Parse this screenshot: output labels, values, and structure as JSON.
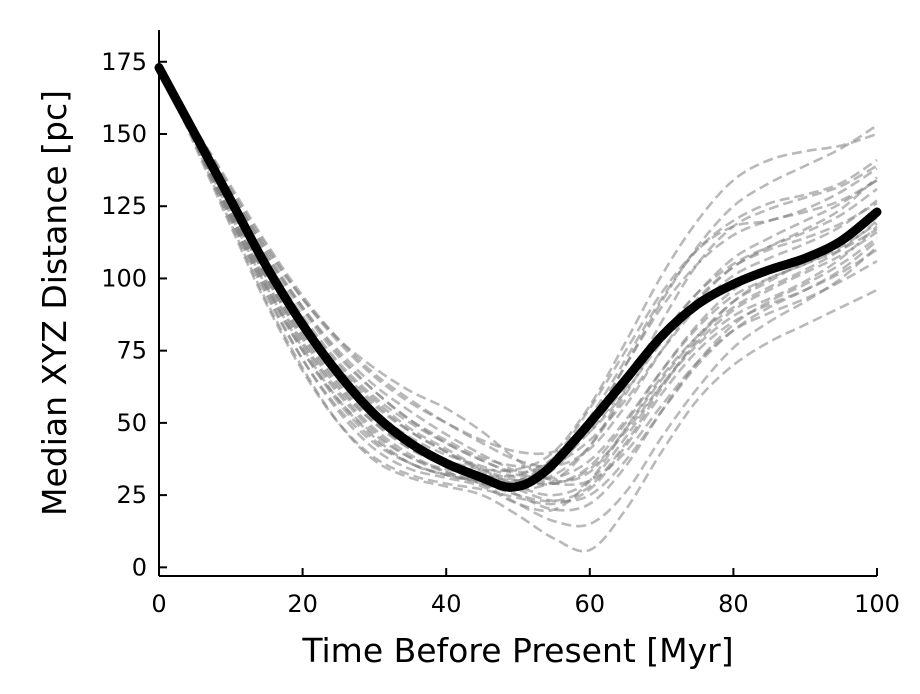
{
  "chart_data": {
    "type": "line",
    "xlabel": "Time Before Present [Myr]",
    "ylabel": "Median XYZ Distance [pc]",
    "xlim": [
      0,
      100
    ],
    "ylim": [
      -3,
      186
    ],
    "xticks": [
      0,
      20,
      40,
      60,
      80,
      100
    ],
    "yticks": [
      0,
      25,
      50,
      75,
      100,
      125,
      150,
      175
    ],
    "grid": false,
    "legend": "none",
    "median": {
      "color": "#000000",
      "x": [
        0,
        5,
        10,
        15,
        20,
        25,
        30,
        35,
        40,
        45,
        48,
        50,
        52,
        55,
        60,
        65,
        70,
        75,
        80,
        85,
        90,
        95,
        100
      ],
      "y": [
        173,
        150,
        127,
        104,
        84,
        67,
        53,
        43,
        36,
        31,
        28,
        28,
        30,
        36,
        50,
        65,
        80,
        91,
        98,
        103,
        107,
        113,
        123
      ]
    },
    "samples": {
      "color": "#7f7f7f",
      "x": [
        0,
        5,
        10,
        15,
        20,
        25,
        30,
        35,
        40,
        45,
        50,
        55,
        60,
        65,
        70,
        75,
        80,
        85,
        90,
        95,
        100
      ],
      "lines": [
        [
          173,
          148,
          122,
          97,
          76,
          58,
          45,
          36,
          32,
          30,
          30,
          38,
          55,
          75,
          95,
          110,
          118,
          120,
          124,
          130,
          138
        ],
        [
          172,
          150,
          128,
          107,
          89,
          73,
          61,
          51,
          43,
          37,
          33,
          36,
          47,
          63,
          80,
          95,
          105,
          111,
          116,
          122,
          131
        ],
        [
          174,
          148,
          121,
          95,
          72,
          54,
          41,
          34,
          31,
          28,
          22,
          20,
          30,
          48,
          66,
          80,
          90,
          97,
          103,
          110,
          120
        ],
        [
          172,
          151,
          130,
          110,
          93,
          79,
          69,
          61,
          55,
          47,
          37,
          30,
          33,
          48,
          65,
          80,
          92,
          99,
          106,
          113,
          121
        ],
        [
          173,
          149,
          124,
          100,
          80,
          63,
          50,
          41,
          36,
          32,
          30,
          32,
          42,
          60,
          80,
          95,
          107,
          114,
          120,
          126,
          134
        ],
        [
          175,
          147,
          119,
          92,
          69,
          50,
          37,
          31,
          28,
          25,
          18,
          10,
          6,
          20,
          40,
          58,
          70,
          78,
          84,
          90,
          96
        ],
        [
          174,
          148,
          121,
          96,
          75,
          58,
          46,
          38,
          34,
          32,
          32,
          38,
          52,
          72,
          93,
          110,
          120,
          126,
          129,
          133,
          141
        ],
        [
          172,
          150,
          127,
          105,
          86,
          70,
          58,
          48,
          41,
          34,
          28,
          25,
          30,
          45,
          63,
          78,
          89,
          96,
          102,
          108,
          116
        ],
        [
          173,
          150,
          127,
          104,
          85,
          69,
          57,
          47,
          40,
          34,
          30,
          29,
          35,
          50,
          68,
          84,
          96,
          103,
          108,
          114,
          124
        ],
        [
          174,
          146,
          118,
          91,
          68,
          50,
          38,
          32,
          29,
          27,
          24,
          22,
          27,
          42,
          60,
          75,
          85,
          91,
          96,
          102,
          110
        ],
        [
          172,
          152,
          132,
          112,
          94,
          79,
          67,
          58,
          50,
          43,
          37,
          35,
          41,
          56,
          75,
          92,
          104,
          111,
          117,
          124,
          135
        ],
        [
          173,
          149,
          125,
          101,
          81,
          64,
          51,
          41,
          35,
          29,
          22,
          16,
          15,
          26,
          45,
          62,
          76,
          85,
          92,
          100,
          111
        ],
        [
          174,
          148,
          123,
          99,
          78,
          61,
          48,
          39,
          33,
          29,
          27,
          30,
          42,
          62,
          85,
          105,
          118,
          124,
          128,
          132,
          139
        ],
        [
          172,
          151,
          129,
          108,
          90,
          75,
          63,
          54,
          46,
          39,
          33,
          29,
          30,
          40,
          56,
          71,
          82,
          88,
          93,
          99,
          106
        ],
        [
          173,
          149,
          124,
          100,
          79,
          62,
          50,
          42,
          37,
          34,
          34,
          40,
          56,
          78,
          101,
          120,
          134,
          141,
          144,
          146,
          150
        ],
        [
          173,
          150,
          126,
          103,
          83,
          66,
          54,
          45,
          39,
          35,
          31,
          29,
          34,
          47,
          63,
          77,
          87,
          93,
          99,
          107,
          118
        ],
        [
          174,
          147,
          120,
          94,
          72,
          55,
          43,
          36,
          32,
          29,
          25,
          23,
          28,
          43,
          62,
          79,
          92,
          100,
          105,
          111,
          119
        ],
        [
          172,
          151,
          130,
          109,
          90,
          74,
          61,
          51,
          44,
          38,
          35,
          36,
          44,
          58,
          75,
          90,
          101,
          107,
          112,
          118,
          127
        ],
        [
          173,
          149,
          125,
          102,
          82,
          66,
          53,
          44,
          37,
          31,
          25,
          20,
          22,
          35,
          54,
          71,
          84,
          92,
          98,
          105,
          114
        ],
        [
          174,
          149,
          123,
          98,
          77,
          60,
          47,
          38,
          33,
          30,
          29,
          34,
          49,
          70,
          92,
          111,
          125,
          133,
          139,
          145,
          153
        ],
        [
          172,
          150,
          128,
          106,
          87,
          71,
          59,
          50,
          43,
          37,
          32,
          31,
          37,
          51,
          68,
          83,
          94,
          100,
          105,
          110,
          117
        ],
        [
          173,
          150,
          126,
          103,
          84,
          68,
          56,
          47,
          40,
          33,
          27,
          23,
          25,
          37,
          54,
          70,
          82,
          90,
          96,
          103,
          113
        ],
        [
          174,
          148,
          122,
          97,
          75,
          57,
          44,
          36,
          32,
          30,
          30,
          36,
          50,
          70,
          90,
          105,
          115,
          120,
          123,
          127,
          134
        ],
        [
          172,
          152,
          131,
          111,
          93,
          78,
          66,
          57,
          50,
          44,
          40,
          40,
          47,
          61,
          78,
          93,
          104,
          110,
          114,
          119,
          126
        ]
      ]
    }
  }
}
